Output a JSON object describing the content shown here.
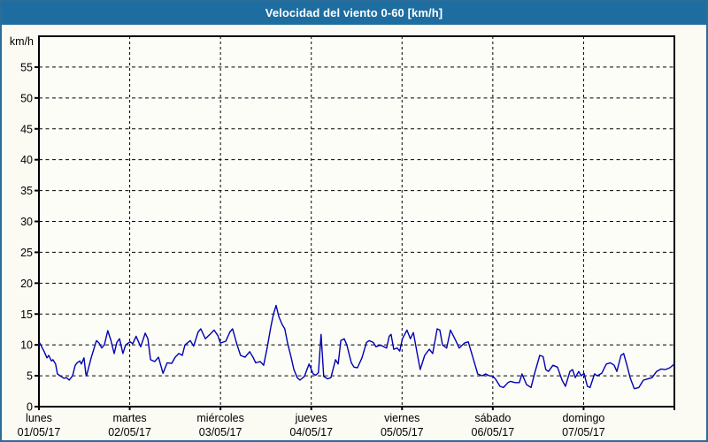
{
  "header": {
    "title": "Velocidad del viento 0-60 [km/h]"
  },
  "colors": {
    "header_bg": "#1e6da0",
    "header_text": "#ffffff",
    "page_border": "#2b6d98",
    "page_bg": "#fbfaf3",
    "plot_bg": "#fdfdf8",
    "axis": "#000000",
    "grid": "#000000",
    "line": "#0000b2"
  },
  "chart_data": {
    "type": "line",
    "title": "Velocidad del viento 0-60 [km/h]",
    "ylabel": "km/h",
    "ylim": [
      0,
      60
    ],
    "yticks": [
      0,
      5,
      10,
      15,
      20,
      25,
      30,
      35,
      40,
      45,
      50,
      55
    ],
    "xlim_hours": [
      0,
      168
    ],
    "x_gridlines_hours": [
      24,
      48,
      72,
      96,
      120,
      144
    ],
    "grid": "dashed",
    "legend": "none",
    "x_axis_labels": [
      {
        "day": "lunes",
        "date": "01/05/17",
        "hour": 0
      },
      {
        "day": "martes",
        "date": "02/05/17",
        "hour": 24
      },
      {
        "day": "miércoles",
        "date": "03/05/17",
        "hour": 48
      },
      {
        "day": "jueves",
        "date": "04/05/17",
        "hour": 72
      },
      {
        "day": "viernes",
        "date": "05/05/17",
        "hour": 96
      },
      {
        "day": "sábado",
        "date": "06/05/17",
        "hour": 120
      },
      {
        "day": "domingo",
        "date": "07/05/17",
        "hour": 144
      }
    ],
    "series": [
      {
        "name": "Velocidad del viento",
        "unit": "km/h",
        "points": [
          [
            0.0,
            9.9
          ],
          [
            0.2,
            10.3
          ],
          [
            1.4,
            8.9
          ],
          [
            2.1,
            7.9
          ],
          [
            2.6,
            8.3
          ],
          [
            3.3,
            7.4
          ],
          [
            3.7,
            7.6
          ],
          [
            4.4,
            6.9
          ],
          [
            4.9,
            5.3
          ],
          [
            5.6,
            5.0
          ],
          [
            6.6,
            4.6
          ],
          [
            7.3,
            4.7
          ],
          [
            8.0,
            4.3
          ],
          [
            8.9,
            5.0
          ],
          [
            9.6,
            6.7
          ],
          [
            10.1,
            7.1
          ],
          [
            10.8,
            7.4
          ],
          [
            11.2,
            6.9
          ],
          [
            11.9,
            7.9
          ],
          [
            12.4,
            5.3
          ],
          [
            12.6,
            5.0
          ],
          [
            13.6,
            7.4
          ],
          [
            13.8,
            7.9
          ],
          [
            14.7,
            9.7
          ],
          [
            15.2,
            10.7
          ],
          [
            15.9,
            10.3
          ],
          [
            16.6,
            9.5
          ],
          [
            17.3,
            10.0
          ],
          [
            18.2,
            12.3
          ],
          [
            19.0,
            10.8
          ],
          [
            19.9,
            8.6
          ],
          [
            20.6,
            10.4
          ],
          [
            21.3,
            11.0
          ],
          [
            22.2,
            8.6
          ],
          [
            22.9,
            10.0
          ],
          [
            24.1,
            10.5
          ],
          [
            24.8,
            10.2
          ],
          [
            25.7,
            11.4
          ],
          [
            26.9,
            9.7
          ],
          [
            28.1,
            11.9
          ],
          [
            28.8,
            11.0
          ],
          [
            29.5,
            7.6
          ],
          [
            30.6,
            7.3
          ],
          [
            31.6,
            8.0
          ],
          [
            32.8,
            5.4
          ],
          [
            33.9,
            7.1
          ],
          [
            35.1,
            7.0
          ],
          [
            36.0,
            8.0
          ],
          [
            37.0,
            8.6
          ],
          [
            37.9,
            8.3
          ],
          [
            38.6,
            10.0
          ],
          [
            40.0,
            10.7
          ],
          [
            40.9,
            9.8
          ],
          [
            42.1,
            12.1
          ],
          [
            42.8,
            12.6
          ],
          [
            44.0,
            11.0
          ],
          [
            45.2,
            11.7
          ],
          [
            46.3,
            12.4
          ],
          [
            47.3,
            11.5
          ],
          [
            48.0,
            10.3
          ],
          [
            49.4,
            10.6
          ],
          [
            50.5,
            12.1
          ],
          [
            51.2,
            12.6
          ],
          [
            52.4,
            10.0
          ],
          [
            53.3,
            8.3
          ],
          [
            54.5,
            8.0
          ],
          [
            55.7,
            8.9
          ],
          [
            56.6,
            8.0
          ],
          [
            57.3,
            7.1
          ],
          [
            58.5,
            7.3
          ],
          [
            59.4,
            6.7
          ],
          [
            60.4,
            9.7
          ],
          [
            61.3,
            12.9
          ],
          [
            62.0,
            15.0
          ],
          [
            62.7,
            16.4
          ],
          [
            63.4,
            14.6
          ],
          [
            64.3,
            13.3
          ],
          [
            65.0,
            12.6
          ],
          [
            65.7,
            10.4
          ],
          [
            66.7,
            7.9
          ],
          [
            67.4,
            6.0
          ],
          [
            68.3,
            4.7
          ],
          [
            69.0,
            4.3
          ],
          [
            70.2,
            4.9
          ],
          [
            71.4,
            6.9
          ],
          [
            72.5,
            5.3
          ],
          [
            73.2,
            5.1
          ],
          [
            73.9,
            5.5
          ],
          [
            74.6,
            11.7
          ],
          [
            75.3,
            4.9
          ],
          [
            76.3,
            4.5
          ],
          [
            77.2,
            4.7
          ],
          [
            78.4,
            7.6
          ],
          [
            79.1,
            6.9
          ],
          [
            79.8,
            10.7
          ],
          [
            80.7,
            11.0
          ],
          [
            81.4,
            10.0
          ],
          [
            82.6,
            7.1
          ],
          [
            83.3,
            6.4
          ],
          [
            84.2,
            6.3
          ],
          [
            85.4,
            7.9
          ],
          [
            86.6,
            10.4
          ],
          [
            87.3,
            10.7
          ],
          [
            88.4,
            10.4
          ],
          [
            89.1,
            9.7
          ],
          [
            90.3,
            10.0
          ],
          [
            91.2,
            9.7
          ],
          [
            91.9,
            9.5
          ],
          [
            92.6,
            11.4
          ],
          [
            93.1,
            11.7
          ],
          [
            93.8,
            9.3
          ],
          [
            94.7,
            9.5
          ],
          [
            95.4,
            9.0
          ],
          [
            96.1,
            11.0
          ],
          [
            97.3,
            12.4
          ],
          [
            98.2,
            11.0
          ],
          [
            99.0,
            12.0
          ],
          [
            100.1,
            8.3
          ],
          [
            100.8,
            6.0
          ],
          [
            102.0,
            8.3
          ],
          [
            103.2,
            9.3
          ],
          [
            104.1,
            8.6
          ],
          [
            105.3,
            12.6
          ],
          [
            106.0,
            12.4
          ],
          [
            106.7,
            10.0
          ],
          [
            107.8,
            9.5
          ],
          [
            108.8,
            12.4
          ],
          [
            110.2,
            10.7
          ],
          [
            111.1,
            9.5
          ],
          [
            112.5,
            10.3
          ],
          [
            113.5,
            10.5
          ],
          [
            114.9,
            7.6
          ],
          [
            116.0,
            5.3
          ],
          [
            117.2,
            5.0
          ],
          [
            118.1,
            5.3
          ],
          [
            119.1,
            5.0
          ],
          [
            120.0,
            4.9
          ],
          [
            120.7,
            4.5
          ],
          [
            121.9,
            3.3
          ],
          [
            122.8,
            3.1
          ],
          [
            124.0,
            3.9
          ],
          [
            124.7,
            4.1
          ],
          [
            125.9,
            3.9
          ],
          [
            127.0,
            3.9
          ],
          [
            127.7,
            5.3
          ],
          [
            128.9,
            3.6
          ],
          [
            130.1,
            3.1
          ],
          [
            131.2,
            5.7
          ],
          [
            132.4,
            8.3
          ],
          [
            133.3,
            8.1
          ],
          [
            134.0,
            6.0
          ],
          [
            134.7,
            5.7
          ],
          [
            135.9,
            6.7
          ],
          [
            137.1,
            6.4
          ],
          [
            138.3,
            4.3
          ],
          [
            139.2,
            3.3
          ],
          [
            140.4,
            5.7
          ],
          [
            141.1,
            6.0
          ],
          [
            141.8,
            4.7
          ],
          [
            142.7,
            5.7
          ],
          [
            143.4,
            5.0
          ],
          [
            144.1,
            5.4
          ],
          [
            145.0,
            3.3
          ],
          [
            145.7,
            3.1
          ],
          [
            146.9,
            5.3
          ],
          [
            147.6,
            5.0
          ],
          [
            148.8,
            5.4
          ],
          [
            150.0,
            6.9
          ],
          [
            151.1,
            7.1
          ],
          [
            152.1,
            6.7
          ],
          [
            152.8,
            5.7
          ],
          [
            153.9,
            8.3
          ],
          [
            154.6,
            8.6
          ],
          [
            155.6,
            6.4
          ],
          [
            156.3,
            4.7
          ],
          [
            157.4,
            2.9
          ],
          [
            158.6,
            3.1
          ],
          [
            159.8,
            4.3
          ],
          [
            161.0,
            4.5
          ],
          [
            162.1,
            4.7
          ],
          [
            163.3,
            5.7
          ],
          [
            164.5,
            6.1
          ],
          [
            165.6,
            6.0
          ],
          [
            166.8,
            6.3
          ],
          [
            168.0,
            6.9
          ]
        ]
      }
    ]
  }
}
